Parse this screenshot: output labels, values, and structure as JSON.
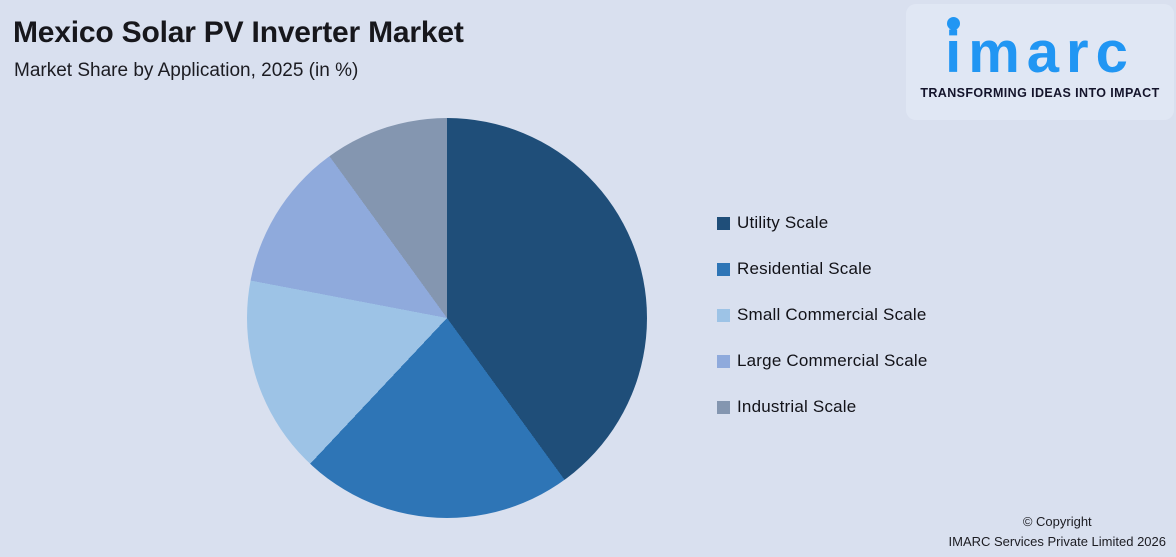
{
  "header": {
    "title": "Mexico Solar PV Inverter Market",
    "subtitle": "Market Share by Application, 2025 (in %)"
  },
  "logo": {
    "wordmark": "imarc",
    "tagline": "TRANSFORMING IDEAS INTO IMPACT",
    "brand_color": "#2196f3"
  },
  "chart_data": {
    "type": "pie",
    "title": "Mexico Solar PV Inverter Market",
    "subtitle": "Market Share by Application, 2025 (in %)",
    "categories": [
      "Utility Scale",
      "Residential Scale",
      "Small Commercial Scale",
      "Large Commercial Scale",
      "Industrial Scale"
    ],
    "values": [
      40,
      22,
      16,
      12,
      10
    ],
    "unit": "%",
    "colors": [
      "#1f4e79",
      "#2e75b6",
      "#9dc3e6",
      "#8faadc",
      "#8496b0"
    ],
    "start_angle_deg": 0,
    "direction": "clockwise",
    "legend_position": "right",
    "data_labels": false,
    "background": "#d9e0ef"
  },
  "footer": {
    "copyright_line1": "© Copyright",
    "copyright_line2": "IMARC Services Private Limited 2026"
  }
}
